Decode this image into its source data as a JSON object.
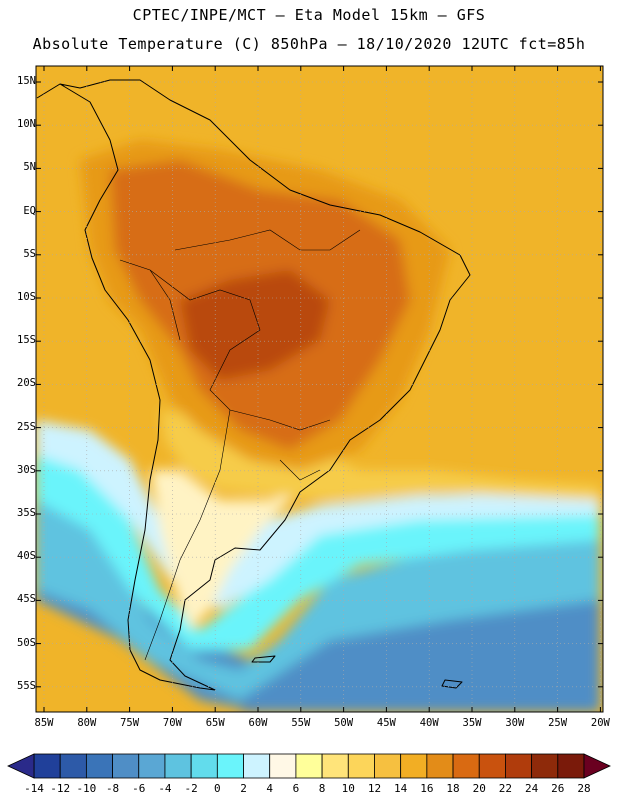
{
  "title": {
    "line1": "CPTEC/INPE/MCT –  Eta Model 15km – GFS",
    "line2": "Absolute Temperature (C) 850hPa – 18/10/2020 12UTC fct=85h"
  },
  "lat_labels": [
    "15N",
    "10N",
    "5N",
    "EQ",
    "5S",
    "10S",
    "15S",
    "20S",
    "25S",
    "30S",
    "35S",
    "40S",
    "45S",
    "50S",
    "55S"
  ],
  "lon_labels": [
    "85W",
    "80W",
    "75W",
    "70W",
    "65W",
    "60W",
    "55W",
    "50W",
    "45W",
    "40W",
    "35W",
    "30W",
    "25W",
    "20W"
  ],
  "colorbar": {
    "labels": [
      "-14",
      "-12",
      "-10",
      "-8",
      "-6",
      "-4",
      "-2",
      "0",
      "2",
      "4",
      "6",
      "8",
      "10",
      "12",
      "14",
      "16",
      "18",
      "20",
      "22",
      "24",
      "26",
      "28"
    ],
    "colors": [
      "#20409a",
      "#2d5aa8",
      "#3a74b8",
      "#4f8ec6",
      "#5aa7d4",
      "#5ec3e0",
      "#62dcec",
      "#6af4fb",
      "#cdf3ff",
      "#fff8e6",
      "#ffff9a",
      "#ffe47a",
      "#fcd55a",
      "#f6c040",
      "#f2ae24",
      "#e38c18",
      "#d96a12",
      "#c9520e",
      "#b03c0c",
      "#8e2a0a",
      "#7a1a0a"
    ],
    "low_arrow_color": "#2a2a8a",
    "high_arrow_color": "#6a0020"
  },
  "map_colors": {
    "ocean_warm": "#f0b429",
    "warm": "#e79a18",
    "hot": "#d76d12",
    "very_hot": "#b9480e",
    "mild": "#f6cc48",
    "pale": "#fff3c4",
    "cool": "#cdf3ff",
    "cyan": "#6af4fb",
    "mid_blue": "#5ec3e0",
    "blue": "#4f8ec6",
    "deep_blue": "#2d5aa8"
  }
}
